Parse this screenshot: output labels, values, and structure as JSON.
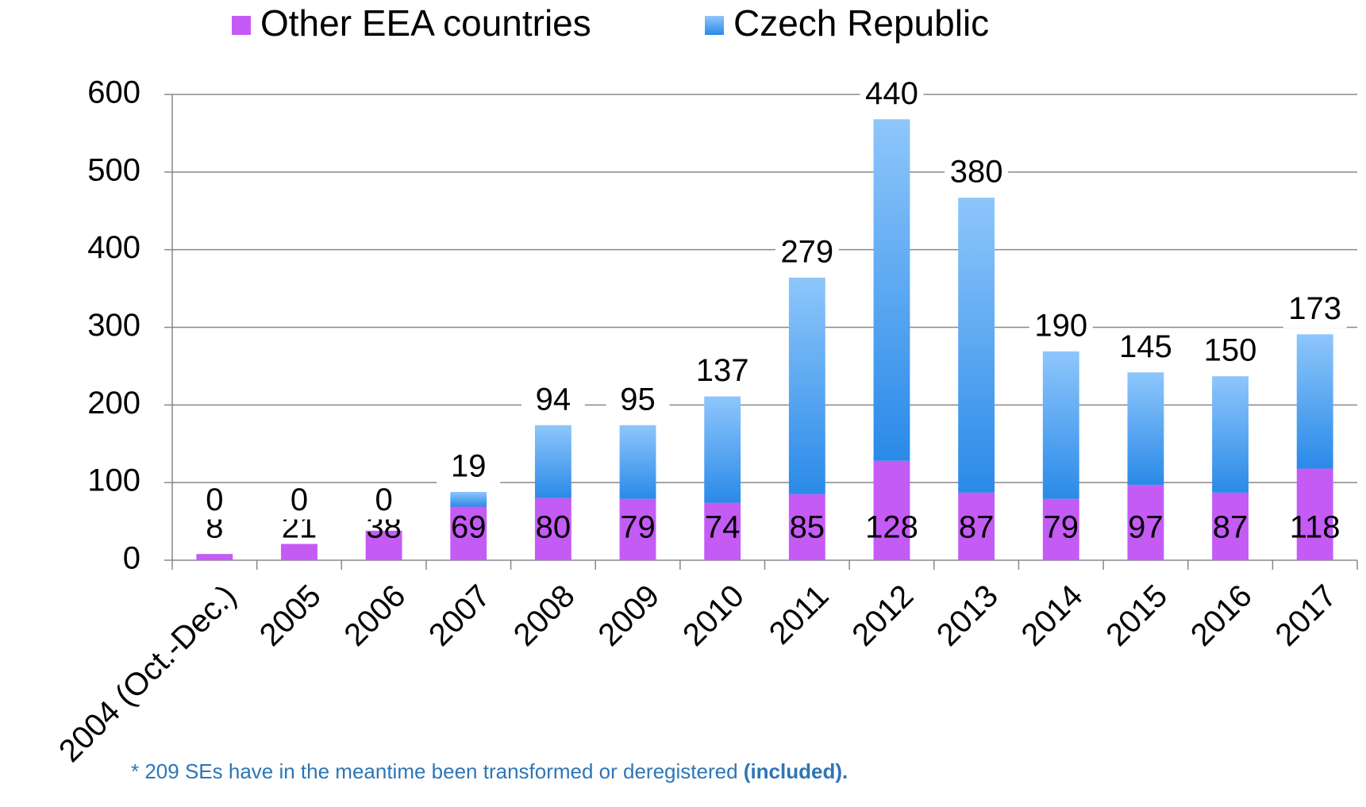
{
  "chart_data": {
    "type": "stacked_bar",
    "categories": [
      "2004 (Oct.-Dec.)",
      "2005",
      "2006",
      "2007",
      "2008",
      "2009",
      "2010",
      "2011",
      "2012",
      "2013",
      "2014",
      "2015",
      "2016",
      "2017"
    ],
    "series": [
      {
        "name": "Other EEA countries",
        "color": "#c45bf5",
        "values": [
          8,
          21,
          38,
          69,
          80,
          79,
          74,
          85,
          128,
          87,
          79,
          97,
          87,
          118
        ]
      },
      {
        "name": "Czech Republic",
        "color": "#3a96ec",
        "values": [
          0,
          0,
          0,
          19,
          94,
          95,
          137,
          279,
          440,
          380,
          190,
          145,
          150,
          173
        ]
      }
    ],
    "ylim": [
      0,
      600
    ],
    "yticks": [
      0,
      100,
      200,
      300,
      400,
      500,
      600
    ],
    "grid": true,
    "footnote": "* 209 SEs have in the meantime been transformed or deregistered",
    "footnote_bold": "(included)."
  }
}
